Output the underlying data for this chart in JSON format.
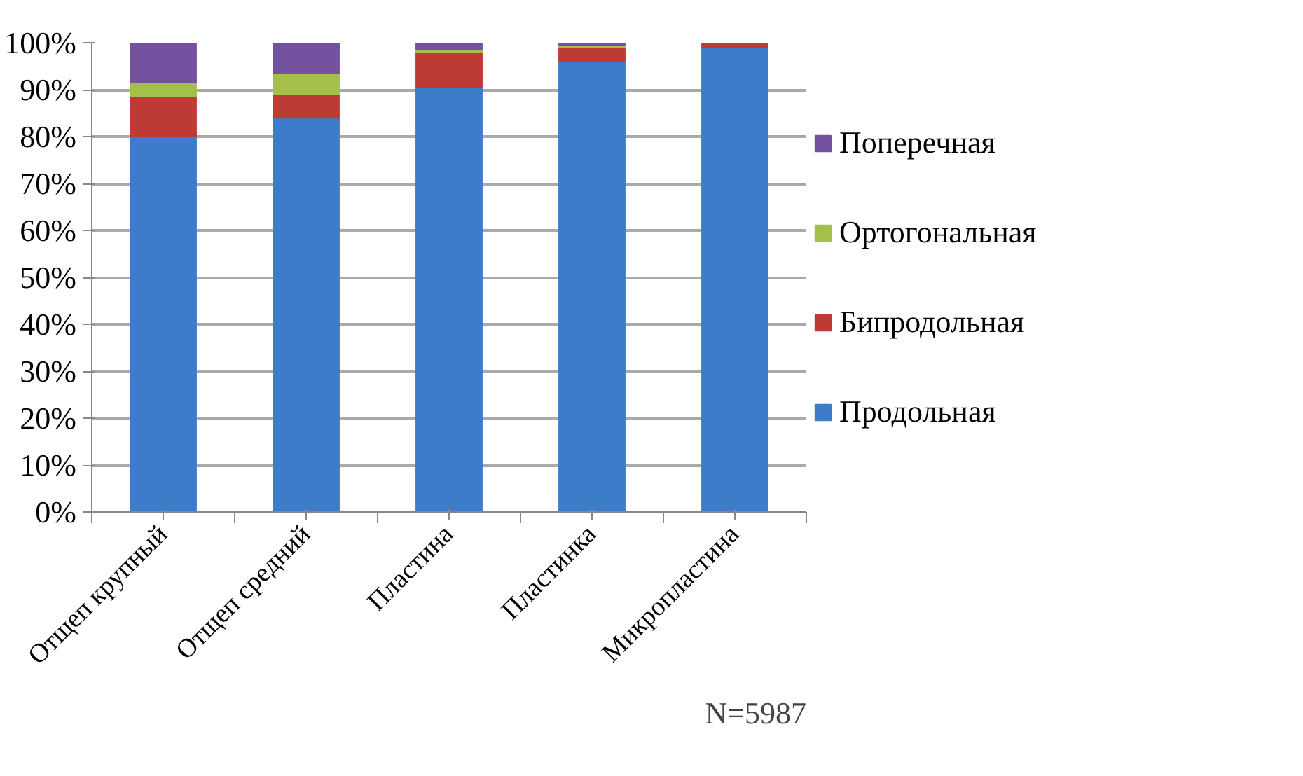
{
  "chart_data": {
    "type": "bar",
    "stacked": true,
    "categories": [
      "Отщеп крупный",
      "Отщеп средний",
      "Пластина",
      "Пластинка",
      "Микропластина"
    ],
    "series": [
      {
        "name": "Продольная",
        "color": "#3d7cc9",
        "values": [
          80,
          84,
          90.5,
          96,
          99
        ]
      },
      {
        "name": "Бипродольная",
        "color": "#be3a35",
        "values": [
          8.5,
          5,
          7.5,
          3,
          1
        ]
      },
      {
        "name": "Ортогональная",
        "color": "#a3c14a",
        "values": [
          3,
          4.5,
          0.5,
          0.5,
          0
        ]
      },
      {
        "name": "Поперечная",
        "color": "#7452a0",
        "values": [
          8.5,
          6.5,
          1.5,
          0.5,
          0
        ]
      }
    ],
    "ylim": [
      0,
      100
    ],
    "yticks": [
      {
        "value": 0,
        "label": "0%"
      },
      {
        "value": 10,
        "label": "10%"
      },
      {
        "value": 20,
        "label": "20%"
      },
      {
        "value": 30,
        "label": "30%"
      },
      {
        "value": 40,
        "label": "40%"
      },
      {
        "value": 50,
        "label": "50%"
      },
      {
        "value": 60,
        "label": "60%"
      },
      {
        "value": 70,
        "label": "70%"
      },
      {
        "value": 80,
        "label": "80%"
      },
      {
        "value": 90,
        "label": "90%"
      },
      {
        "value": 100,
        "label": "100%"
      }
    ],
    "grid": "y",
    "legend": "right",
    "annotations": [
      "N=5987"
    ]
  }
}
